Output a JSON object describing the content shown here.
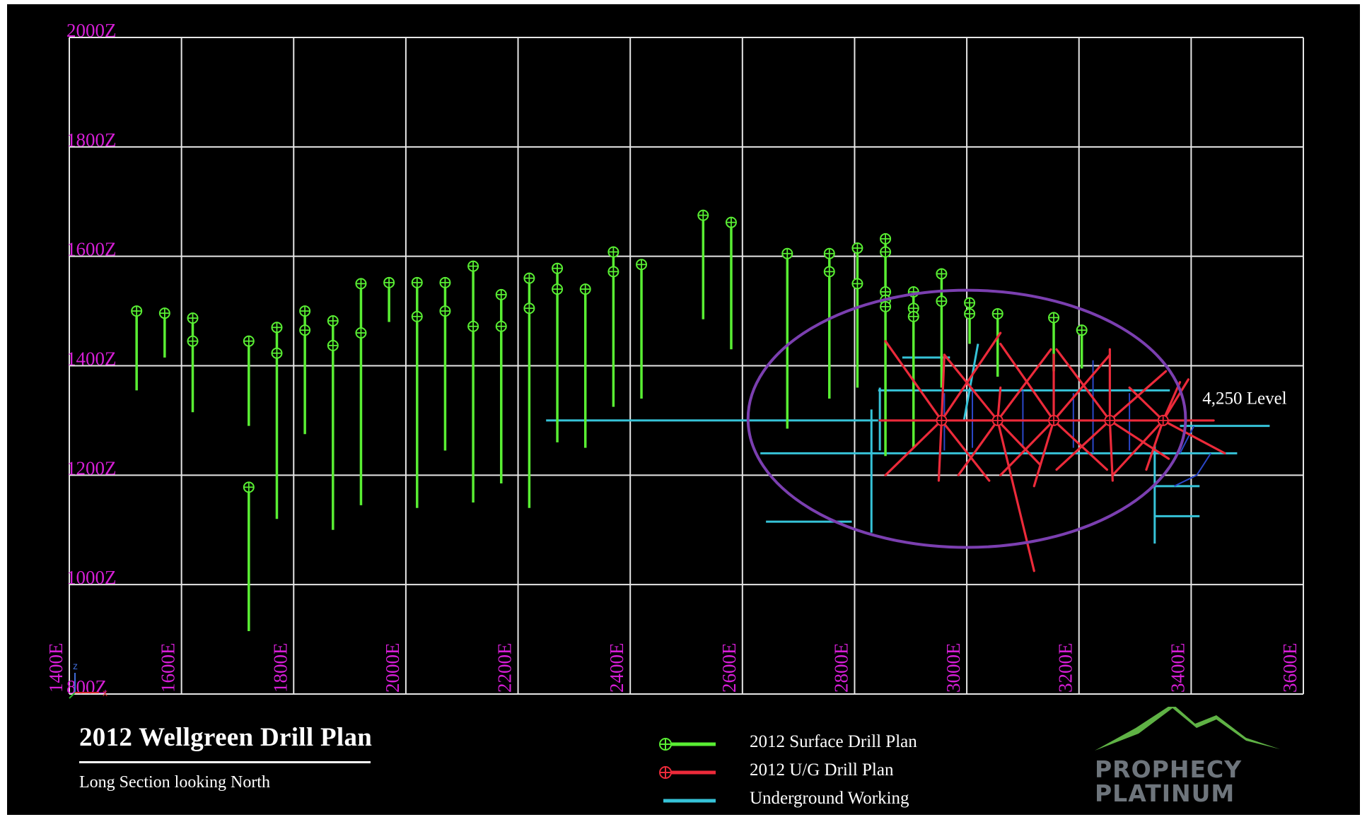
{
  "chart_data": {
    "type": "scatter",
    "title": "2012 Wellgreen Drill Plan",
    "subtitle": "Long Section looking North",
    "x_ticks": [
      "1400E",
      "1600E",
      "1800E",
      "2000E",
      "2200E",
      "2400E",
      "2600E",
      "2800E",
      "3000E",
      "3200E",
      "3400E",
      "3600E"
    ],
    "y_ticks": [
      "2000Z",
      "1800Z",
      "1600Z",
      "1400Z",
      "1200Z",
      "1000Z",
      "800Z"
    ],
    "xlim": [
      1400,
      3600
    ],
    "ylim": [
      800,
      2000
    ],
    "grid": true,
    "axis_triad": {
      "z": "z",
      "x": "x"
    },
    "annotation": {
      "text": "4,250 Level",
      "x": 3420,
      "z": 1330
    },
    "highlight_ellipse": {
      "cx": 3000,
      "cz": 1303,
      "rx": 390,
      "rz": 235,
      "color": "#7b3fb0"
    },
    "colors": {
      "surface": "#59ee33",
      "ug": "#ec2a3a",
      "working": "#36c3d8",
      "grid": "#e6e6e6",
      "tick_text": "#d61ed6",
      "ellipse": "#7b3fb0"
    },
    "legend": [
      {
        "name": "2012 Surface Drill Plan",
        "color": "#59ee33",
        "marker": "crosshair"
      },
      {
        "name": "2012 U/G Drill Plan",
        "color": "#ec2a3a",
        "marker": "crosshair"
      },
      {
        "name": "Underground Working",
        "color": "#36c3d8",
        "marker": "none"
      }
    ],
    "surface_holes": [
      {
        "x": 1520,
        "top": 1500,
        "bottom": 1355,
        "markers": [
          1500
        ]
      },
      {
        "x": 1570,
        "top": 1496,
        "bottom": 1415,
        "markers": [
          1496
        ]
      },
      {
        "x": 1620,
        "top": 1487,
        "bottom": 1315,
        "markers": [
          1487,
          1445
        ]
      },
      {
        "x": 1720,
        "top": 1445,
        "bottom": 1290,
        "markers": [
          1445
        ]
      },
      {
        "x": 1720,
        "top": 1178,
        "bottom": 915,
        "markers": [
          1178
        ]
      },
      {
        "x": 1770,
        "top": 1470,
        "bottom": 1120,
        "markers": [
          1470,
          1423
        ]
      },
      {
        "x": 1820,
        "top": 1500,
        "bottom": 1275,
        "markers": [
          1500,
          1465
        ]
      },
      {
        "x": 1870,
        "top": 1482,
        "bottom": 1100,
        "markers": [
          1482,
          1437
        ]
      },
      {
        "x": 1920,
        "top": 1550,
        "bottom": 1145,
        "markers": [
          1550,
          1460
        ]
      },
      {
        "x": 1970,
        "top": 1552,
        "bottom": 1480,
        "markers": [
          1552
        ]
      },
      {
        "x": 2020,
        "top": 1552,
        "bottom": 1140,
        "markers": [
          1552,
          1490
        ]
      },
      {
        "x": 2070,
        "top": 1552,
        "bottom": 1245,
        "markers": [
          1552,
          1500
        ]
      },
      {
        "x": 2120,
        "top": 1582,
        "bottom": 1150,
        "markers": [
          1582,
          1472
        ]
      },
      {
        "x": 2170,
        "top": 1530,
        "bottom": 1185,
        "markers": [
          1530,
          1472
        ]
      },
      {
        "x": 2220,
        "top": 1560,
        "bottom": 1140,
        "markers": [
          1560,
          1505
        ]
      },
      {
        "x": 2270,
        "top": 1578,
        "bottom": 1260,
        "markers": [
          1578,
          1540
        ]
      },
      {
        "x": 2320,
        "top": 1540,
        "bottom": 1250,
        "markers": [
          1540
        ]
      },
      {
        "x": 2370,
        "top": 1608,
        "bottom": 1325,
        "markers": [
          1608,
          1572
        ]
      },
      {
        "x": 2420,
        "top": 1585,
        "bottom": 1340,
        "markers": [
          1585
        ]
      },
      {
        "x": 2530,
        "top": 1675,
        "bottom": 1485,
        "markers": [
          1675
        ]
      },
      {
        "x": 2580,
        "top": 1662,
        "bottom": 1430,
        "markers": [
          1662
        ]
      },
      {
        "x": 2680,
        "top": 1605,
        "bottom": 1285,
        "markers": [
          1605
        ]
      },
      {
        "x": 2755,
        "top": 1605,
        "bottom": 1340,
        "markers": [
          1605,
          1572
        ]
      },
      {
        "x": 2805,
        "top": 1615,
        "bottom": 1360,
        "markers": [
          1615,
          1550
        ]
      },
      {
        "x": 2855,
        "top": 1632,
        "bottom": 1235,
        "markers": [
          1632,
          1608,
          1535,
          1520,
          1508
        ]
      },
      {
        "x": 2905,
        "top": 1535,
        "bottom": 1250,
        "markers": [
          1535,
          1505,
          1490
        ]
      },
      {
        "x": 2955,
        "top": 1568,
        "bottom": 1360,
        "markers": [
          1568,
          1518
        ]
      },
      {
        "x": 3005,
        "top": 1515,
        "bottom": 1440,
        "markers": [
          1515,
          1495
        ]
      },
      {
        "x": 3055,
        "top": 1495,
        "bottom": 1380,
        "markers": [
          1495
        ]
      },
      {
        "x": 3155,
        "top": 1488,
        "bottom": 1390,
        "markers": [
          1488
        ]
      },
      {
        "x": 3205,
        "top": 1465,
        "bottom": 1395,
        "markers": [
          1465
        ]
      }
    ],
    "ug_fans": [
      {
        "x": 2955,
        "z": 1300,
        "ends": [
          [
            2855,
            1445
          ],
          [
            3060,
            1460
          ],
          [
            2855,
            1200
          ],
          [
            3040,
            1190
          ],
          [
            2845,
            1300
          ],
          [
            3050,
            1300
          ],
          [
            2960,
            1420
          ],
          [
            2950,
            1190
          ]
        ]
      },
      {
        "x": 3055,
        "z": 1300,
        "ends": [
          [
            2960,
            1420
          ],
          [
            3150,
            1430
          ],
          [
            2985,
            1200
          ],
          [
            3130,
            1220
          ],
          [
            3000,
            1300
          ],
          [
            3100,
            1300
          ],
          [
            3120,
            1025
          ],
          [
            3060,
            1360
          ]
        ]
      },
      {
        "x": 3155,
        "z": 1300,
        "ends": [
          [
            3060,
            1440
          ],
          [
            3255,
            1420
          ],
          [
            3060,
            1200
          ],
          [
            3250,
            1210
          ],
          [
            3100,
            1300
          ],
          [
            3200,
            1300
          ],
          [
            3155,
            1420
          ],
          [
            3120,
            1180
          ]
        ]
      },
      {
        "x": 3255,
        "z": 1300,
        "ends": [
          [
            3160,
            1430
          ],
          [
            3355,
            1390
          ],
          [
            3160,
            1210
          ],
          [
            3360,
            1230
          ],
          [
            3200,
            1300
          ],
          [
            3300,
            1300
          ],
          [
            3255,
            1430
          ],
          [
            3260,
            1190
          ]
        ]
      },
      {
        "x": 3350,
        "z": 1300,
        "ends": [
          [
            3290,
            1360
          ],
          [
            3395,
            1375
          ],
          [
            3260,
            1200
          ],
          [
            3460,
            1240
          ],
          [
            3300,
            1300
          ],
          [
            3440,
            1300
          ],
          [
            3380,
            1370
          ],
          [
            3320,
            1210
          ]
        ]
      }
    ],
    "workings": [
      {
        "pts": [
          [
            2250,
            1300
          ],
          [
            2842,
            1300
          ]
        ]
      },
      {
        "pts": [
          [
            2842,
            1355
          ],
          [
            3362,
            1355
          ]
        ]
      },
      {
        "pts": [
          [
            2632,
            1240
          ],
          [
            3482,
            1240
          ]
        ]
      },
      {
        "pts": [
          [
            2885,
            1415
          ],
          [
            2970,
            1415
          ]
        ]
      },
      {
        "pts": [
          [
            3380,
            1290
          ],
          [
            3540,
            1290
          ]
        ]
      },
      {
        "pts": [
          [
            2642,
            1115
          ],
          [
            2795,
            1115
          ]
        ]
      },
      {
        "pts": [
          [
            2830,
            1320
          ],
          [
            2830,
            1095
          ]
        ]
      },
      {
        "pts": [
          [
            3335,
            1255
          ],
          [
            3335,
            1075
          ]
        ]
      },
      {
        "pts": [
          [
            3335,
            1180
          ],
          [
            3415,
            1180
          ]
        ]
      },
      {
        "pts": [
          [
            3335,
            1125
          ],
          [
            3415,
            1125
          ]
        ]
      },
      {
        "pts": [
          [
            2845,
            1360
          ],
          [
            2845,
            1245
          ]
        ]
      },
      {
        "pts": [
          [
            3020,
            1440
          ],
          [
            2995,
            1300
          ]
        ]
      }
    ],
    "dark_workings": [
      {
        "pts": [
          [
            3380,
            1240
          ],
          [
            3405,
            1290
          ]
        ]
      },
      {
        "pts": [
          [
            3370,
            1180
          ],
          [
            3410,
            1200
          ],
          [
            3435,
            1240
          ]
        ]
      },
      {
        "pts": [
          [
            2960,
            1350
          ],
          [
            2960,
            1245
          ]
        ]
      },
      {
        "pts": [
          [
            3010,
            1360
          ],
          [
            3010,
            1250
          ]
        ]
      },
      {
        "pts": [
          [
            3100,
            1355
          ],
          [
            3100,
            1250
          ]
        ]
      },
      {
        "pts": [
          [
            3190,
            1350
          ],
          [
            3190,
            1250
          ]
        ]
      },
      {
        "pts": [
          [
            3225,
            1410
          ],
          [
            3225,
            1240
          ]
        ]
      },
      {
        "pts": [
          [
            3290,
            1350
          ],
          [
            3290,
            1245
          ]
        ]
      }
    ]
  }
}
